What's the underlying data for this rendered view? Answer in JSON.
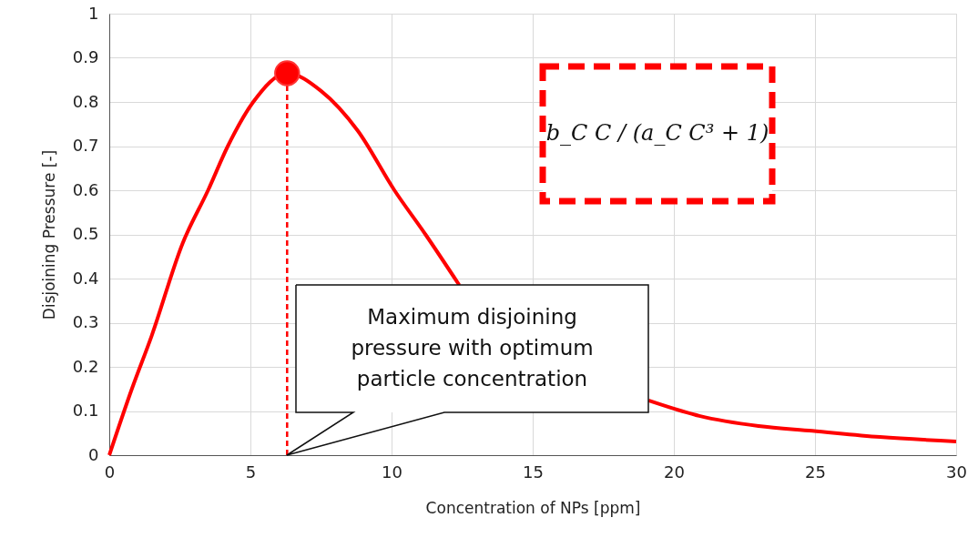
{
  "chart_data": {
    "type": "line",
    "xlabel": "Concentration of NPs [ppm]",
    "ylabel": "Disjoining Pressure [-]",
    "xlim": [
      0,
      30
    ],
    "xticks": [
      0,
      5,
      10,
      15,
      20,
      25,
      30
    ],
    "ylim": [
      0,
      1
    ],
    "yticks": [
      0,
      0.1,
      0.2,
      0.3,
      0.4,
      0.5,
      0.6,
      0.7,
      0.8,
      0.9,
      1
    ],
    "grid": true,
    "series": [
      {
        "color": "#ff0000",
        "line_style": "solid",
        "marker": "none",
        "x": [
          0,
          0.8,
          1.5,
          2.6,
          3.5,
          4.2,
          5.1,
          6.3,
          7.5,
          8.8,
          10.1,
          11.2,
          12.4,
          15.5,
          19.1,
          20.9,
          23,
          24.9,
          27.3,
          30
        ],
        "values": [
          0,
          0.15,
          0.27,
          0.48,
          0.6,
          0.7,
          0.8,
          0.865,
          0.825,
          0.735,
          0.6,
          0.5,
          0.385,
          null,
          0.124,
          0.089,
          0.066,
          0.055,
          0.041,
          0.031
        ]
      },
      {
        "type": "line",
        "color": "#ff0000",
        "line_style": "dashed",
        "marker": "none",
        "x": [
          6.3,
          6.3
        ],
        "values": [
          0,
          0.865
        ]
      },
      {
        "type": "scatter",
        "color": "#ff0000",
        "marker": "circle",
        "x": [
          6.3
        ],
        "values": [
          0.865
        ]
      }
    ],
    "annotations": [
      "Maximum disjoining pressure with optimum particle concentration",
      "b_C C / (a_C C³ + 1)"
    ]
  }
}
